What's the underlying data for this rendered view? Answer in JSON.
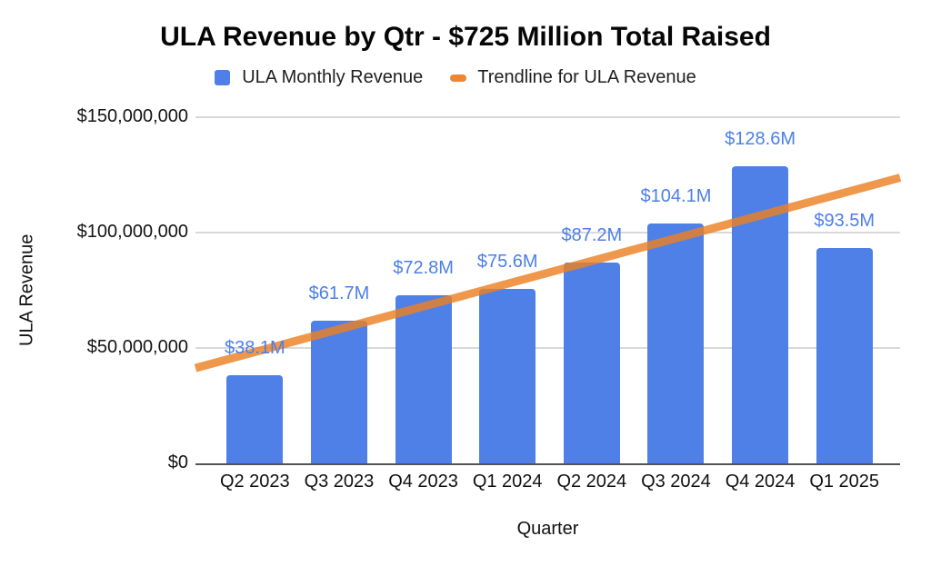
{
  "chart": {
    "title": "ULA Revenue by Qtr - $725 Million Total Raised",
    "xlabel": "Quarter",
    "ylabel": "ULA Revenue",
    "legend": [
      {
        "label": "ULA Monthly Revenue",
        "swatch": "blue-square"
      },
      {
        "label": "Trendline for ULA Revenue",
        "swatch": "orange-dash"
      }
    ]
  },
  "chart_data": {
    "type": "bar",
    "title": "ULA Revenue by Qtr - $725 Million Total Raised",
    "xlabel": "Quarter",
    "ylabel": "ULA Revenue",
    "categories": [
      "Q2 2023",
      "Q3 2023",
      "Q4 2023",
      "Q1 2024",
      "Q2 2024",
      "Q3 2024",
      "Q4 2024",
      "Q1 2025"
    ],
    "series": [
      {
        "name": "ULA Monthly Revenue",
        "values": [
          38100000,
          61700000,
          72800000,
          75600000,
          87200000,
          104100000,
          128600000,
          93500000
        ],
        "data_labels": [
          "$38.1M",
          "$61.7M",
          "$72.8M",
          "$75.6M",
          "$87.2M",
          "$104.1M",
          "$128.6M",
          "$93.5M"
        ]
      }
    ],
    "trendline": {
      "name": "Trendline for ULA Revenue",
      "start_value": 41300000,
      "end_value": 123800000
    },
    "ylim": [
      0,
      150000000
    ],
    "yticks": [
      {
        "value": 0,
        "label": "$0"
      },
      {
        "value": 50000000,
        "label": "$50,000,000"
      },
      {
        "value": 100000000,
        "label": "$100,000,000"
      },
      {
        "value": 150000000,
        "label": "$150,000,000"
      }
    ],
    "grid": "horizontal",
    "legend_position": "top"
  },
  "colors": {
    "bar": "#4E80E8",
    "data_label": "#4C7FE8",
    "trendline": "#EC8023",
    "trendline_opacity": "0.82",
    "gridline": "#D9D9D9",
    "axis_line": "#545454",
    "title_text": "#060606",
    "tick_text": "#141414"
  }
}
